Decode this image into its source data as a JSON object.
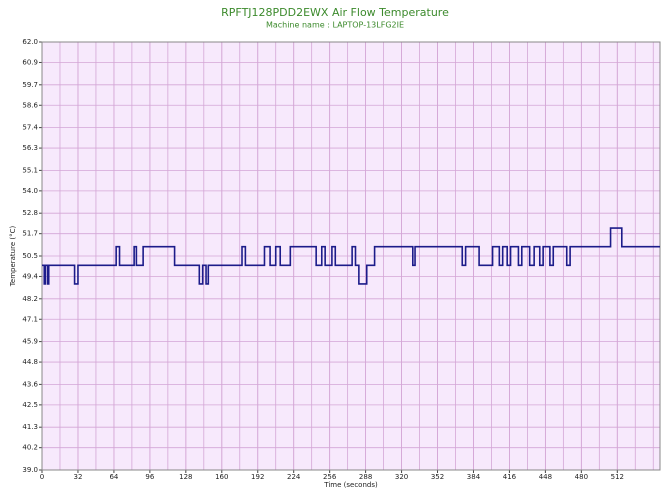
{
  "chart_data": {
    "type": "line",
    "step": "post",
    "title": "RPFTJ128PDD2EWX Air Flow Temperature",
    "subtitle": "Machine name : LAPTOP-13LFG2IE",
    "xlabel": "Time (seconds)",
    "ylabel": "Temperature (°C)",
    "xlim": [
      0,
      550
    ],
    "ylim": [
      39,
      62
    ],
    "xticks": [
      0,
      32,
      64,
      96,
      128,
      160,
      192,
      224,
      256,
      288,
      320,
      352,
      384,
      416,
      448,
      480,
      512
    ],
    "xgrid_step": 16,
    "yticks": [
      {
        "value": 62,
        "label": "62.0"
      },
      60.9,
      59.7,
      58.6,
      57.4,
      56.3,
      55.1,
      {
        "value": 54,
        "label": "54.0"
      },
      52.8,
      51.7,
      50.5,
      49.4,
      48.2,
      47.1,
      45.9,
      44.8,
      43.6,
      42.5,
      41.3,
      40.2,
      {
        "value": 39,
        "label": "39.0"
      }
    ],
    "grid": true,
    "background": "#f7e9fc",
    "grid_color": "#d4a6d6",
    "series": [
      {
        "name": "Air Flow Temperature",
        "color": "#1c1c8a",
        "x": [
          0,
          2,
          3,
          5,
          6,
          29,
          32,
          66,
          69,
          82,
          84,
          90,
          118,
          140,
          143,
          146,
          148,
          178,
          181,
          198,
          203,
          208,
          212,
          221,
          244,
          249,
          252,
          258,
          261,
          276,
          279,
          282,
          289,
          296,
          330,
          332,
          374,
          377,
          389,
          401,
          407,
          410,
          414,
          417,
          424,
          427,
          434,
          438,
          443,
          446,
          452,
          455,
          467,
          470,
          506,
          516,
          550
        ],
        "values": [
          50.0,
          49.0,
          50.0,
          49.0,
          50.0,
          49.0,
          50.0,
          51.0,
          50.0,
          51.0,
          50.0,
          51.0,
          50.0,
          49.0,
          50.0,
          49.0,
          50.0,
          51.0,
          50.0,
          51.0,
          50.0,
          51.0,
          50.0,
          51.0,
          50.0,
          51.0,
          50.0,
          51.0,
          50.0,
          51.0,
          50.0,
          49.0,
          50.0,
          51.0,
          50.0,
          51.0,
          50.0,
          51.0,
          50.0,
          51.0,
          50.0,
          51.0,
          50.0,
          51.0,
          50.0,
          51.0,
          50.0,
          51.0,
          50.0,
          51.0,
          50.0,
          51.0,
          50.0,
          51.0,
          52.0,
          51.0,
          51.0
        ]
      }
    ]
  }
}
